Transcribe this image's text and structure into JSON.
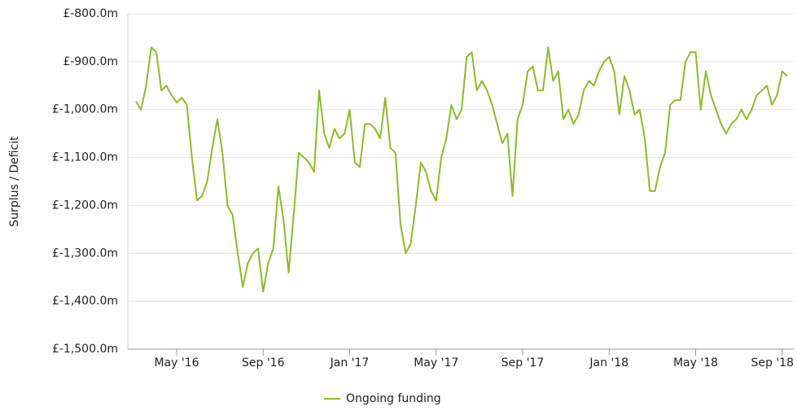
{
  "chart_data": {
    "type": "line",
    "y_label": "Surplus / Deficit",
    "categories": [
      null,
      null,
      null,
      null,
      null,
      null,
      null,
      null,
      "May '16",
      null,
      null,
      null,
      null,
      null,
      null,
      null,
      null,
      null,
      null,
      null,
      null,
      null,
      null,
      null,
      null,
      "Sep '16",
      null,
      null,
      null,
      null,
      null,
      null,
      null,
      null,
      null,
      null,
      null,
      null,
      null,
      null,
      null,
      null,
      "Jan '17",
      null,
      null,
      null,
      null,
      null,
      null,
      null,
      null,
      null,
      null,
      null,
      null,
      null,
      null,
      null,
      null,
      "May '17",
      null,
      null,
      null,
      null,
      null,
      null,
      null,
      null,
      null,
      null,
      null,
      null,
      null,
      null,
      null,
      null,
      "Sep '17",
      null,
      null,
      null,
      null,
      null,
      null,
      null,
      null,
      null,
      null,
      null,
      null,
      null,
      null,
      null,
      null,
      "Jan '18",
      null,
      null,
      null,
      null,
      null,
      null,
      null,
      null,
      null,
      null,
      null,
      null,
      null,
      null,
      null,
      null,
      "May '18",
      null,
      null,
      null,
      null,
      null,
      null,
      null,
      null,
      null,
      null,
      null,
      null,
      null,
      null,
      null,
      null,
      "Sep '18",
      null
    ],
    "series": [
      {
        "name": "Ongoing funding",
        "color": "#8cbb2a",
        "values": [
          -983,
          -1000,
          -950,
          -870,
          -880,
          -960,
          -950,
          -970,
          -985,
          -975,
          -990,
          -1100,
          -1190,
          -1180,
          -1150,
          -1080,
          -1020,
          -1090,
          -1200,
          -1220,
          -1300,
          -1370,
          -1320,
          -1300,
          -1290,
          -1380,
          -1320,
          -1290,
          -1160,
          -1230,
          -1340,
          -1220,
          -1090,
          -1100,
          -1110,
          -1130,
          -960,
          -1050,
          -1080,
          -1040,
          -1060,
          -1050,
          -1000,
          -1110,
          -1120,
          -1030,
          -1030,
          -1040,
          -1060,
          -975,
          -1080,
          -1090,
          -1240,
          -1300,
          -1280,
          -1200,
          -1110,
          -1130,
          -1170,
          -1190,
          -1100,
          -1060,
          -990,
          -1020,
          -1000,
          -890,
          -880,
          -960,
          -940,
          -960,
          -990,
          -1030,
          -1070,
          -1050,
          -1180,
          -1020,
          -990,
          -920,
          -910,
          -960,
          -960,
          -870,
          -940,
          -920,
          -1020,
          -1000,
          -1030,
          -1010,
          -960,
          -940,
          -950,
          -920,
          -900,
          -890,
          -920,
          -1010,
          -930,
          -960,
          -1010,
          -1000,
          -1060,
          -1170,
          -1170,
          -1120,
          -1090,
          -990,
          -980,
          -980,
          -900,
          -880,
          -880,
          -1000,
          -920,
          -970,
          -1000,
          -1030,
          -1050,
          -1030,
          -1020,
          -1000,
          -1020,
          -1000,
          -970,
          -960,
          -950,
          -990,
          -970,
          -920,
          -930
        ]
      }
    ],
    "ylim": [
      -1500,
      -800
    ],
    "yticks": [
      {
        "value": -1500,
        "label": "£-1,500.0m"
      },
      {
        "value": -1400,
        "label": "£-1,400.0m"
      },
      {
        "value": -1300,
        "label": "£-1,300.0m"
      },
      {
        "value": -1200,
        "label": "£-1,200.0m"
      },
      {
        "value": -1100,
        "label": "£-1,100.0m"
      },
      {
        "value": -1000,
        "label": "£-1,000.0m"
      },
      {
        "value": -900,
        "label": "£-900.0m"
      },
      {
        "value": -800,
        "label": "£-800.0m"
      }
    ],
    "grid": true,
    "legend": "bottom"
  }
}
